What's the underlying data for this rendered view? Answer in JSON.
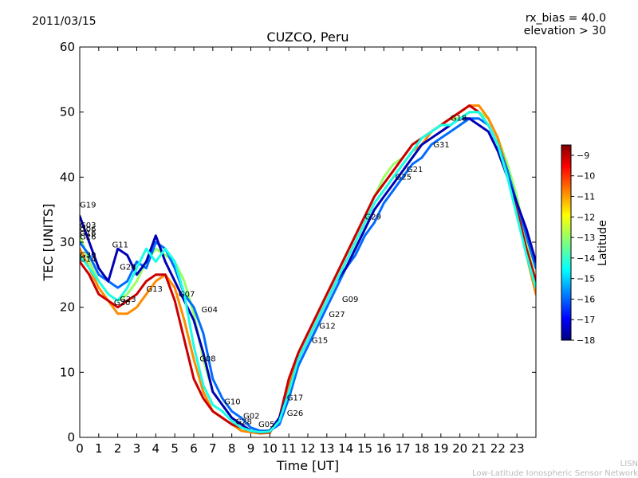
{
  "header": {
    "date": "2011/03/15",
    "rx_bias": "rx_bias = 40.0",
    "elevation": "elevation > 30"
  },
  "footer": {
    "line1": "LISN",
    "line2": "Low-Latitude Ionospheric Sensor Network"
  },
  "colorbar": {
    "label": "Latitude",
    "ticks": [
      "−9",
      "−10",
      "−11",
      "−12",
      "−13",
      "−14",
      "−15",
      "−16",
      "−17",
      "−18"
    ],
    "range": [
      -18,
      -8.5
    ],
    "colormap": [
      "#00007f",
      "#0000ff",
      "#007fff",
      "#00ffff",
      "#7fff7f",
      "#ffff00",
      "#ff7f00",
      "#ff0000",
      "#7f0000"
    ]
  },
  "chart_data": {
    "type": "line",
    "title": "CUZCO, Peru",
    "xlabel": "Time [UT]",
    "ylabel": "TEC [UNITS]",
    "xlim": [
      0,
      24
    ],
    "ylim": [
      0,
      60
    ],
    "xticks": [
      "0",
      "1",
      "2",
      "3",
      "4",
      "5",
      "6",
      "7",
      "8",
      "9",
      "10",
      "11",
      "12",
      "13",
      "14",
      "15",
      "16",
      "17",
      "18",
      "19",
      "20",
      "21",
      "22",
      "23"
    ],
    "yticks": [
      "0",
      "10",
      "20",
      "30",
      "40",
      "50",
      "60"
    ],
    "series": [
      {
        "name": "main-green",
        "lat": -13.0,
        "x": [
          0,
          0.5,
          1,
          1.5,
          2,
          2.5,
          3,
          3.5,
          4,
          4.5,
          5,
          5.5,
          6,
          6.5,
          7,
          7.5,
          8,
          8.5,
          9,
          9.5,
          10,
          10.5,
          11,
          11.5,
          12,
          12.5,
          13,
          13.5,
          14,
          14.5,
          15,
          15.5,
          16,
          16.5,
          17,
          17.5,
          18,
          18.5,
          19,
          19.5,
          20,
          20.5,
          21,
          21.5,
          22,
          22.5,
          23,
          23.5,
          24
        ],
        "y": [
          31,
          27,
          24,
          22,
          21,
          22,
          24,
          27,
          29,
          28,
          27,
          24,
          19,
          12,
          7,
          5,
          3,
          2,
          1,
          0.8,
          0.8,
          3,
          8,
          13,
          16,
          19,
          22,
          25,
          28,
          31,
          34,
          37,
          40,
          42,
          43,
          45,
          46,
          47,
          48,
          49,
          49,
          50,
          50,
          49,
          46,
          42,
          37,
          30,
          24
        ]
      },
      {
        "name": "yellow-orange",
        "lat": -11.0,
        "x": [
          0,
          0.5,
          1,
          1.5,
          2,
          2.5,
          3,
          3.5,
          4,
          4.5,
          5,
          5.5,
          6,
          6.5,
          7,
          7.5,
          8,
          8.5,
          9,
          9.5,
          10,
          10.5,
          11,
          11.5,
          12,
          12.5,
          13,
          13.5,
          14,
          14.5,
          15,
          15.5,
          16,
          16.5,
          17,
          17.5,
          18,
          18.5,
          19,
          19.5,
          20,
          20.5,
          21,
          21.5,
          22,
          22.5,
          23,
          23.5,
          24
        ],
        "y": [
          29,
          26,
          23,
          21,
          19,
          19,
          20,
          22,
          24,
          25,
          23,
          18,
          12,
          7,
          4,
          3,
          2,
          1,
          0.8,
          0.6,
          0.7,
          3,
          8,
          12,
          15,
          18,
          21,
          24,
          27,
          30,
          33,
          36,
          38,
          40,
          42,
          44,
          45,
          47,
          48,
          49,
          50,
          51,
          51,
          49,
          46,
          41,
          35,
          28,
          22
        ]
      },
      {
        "name": "red-dark",
        "lat": -9.2,
        "x": [
          0,
          0.5,
          1,
          1.5,
          2,
          2.5,
          3,
          3.5,
          4,
          4.5,
          5,
          5.5,
          6,
          6.5,
          7,
          7.5,
          8,
          8.5,
          9,
          9.5,
          10,
          10.5,
          11,
          11.5,
          12,
          12.5,
          13,
          13.5,
          14,
          14.5,
          15,
          15.5,
          16,
          16.5,
          17,
          17.5,
          18,
          18.5,
          19,
          19.5,
          20,
          20.5,
          21,
          21.5,
          22,
          22.5,
          23,
          23.5,
          24
        ],
        "y": [
          27,
          25,
          22,
          21,
          20,
          21,
          22,
          24,
          25,
          25,
          21,
          15,
          9,
          6,
          4,
          3,
          2,
          1.5,
          1,
          0.7,
          0.8,
          3,
          9,
          13,
          16,
          19,
          22,
          25,
          28,
          31,
          34,
          37,
          39,
          41,
          43,
          45,
          46,
          47,
          48,
          49,
          50,
          51,
          50,
          48,
          45,
          40,
          35,
          29,
          24
        ]
      },
      {
        "name": "cyan",
        "lat": -15.8,
        "x": [
          0,
          0.5,
          1,
          1.5,
          2,
          2.5,
          3,
          3.5,
          4,
          4.5,
          5,
          5.5,
          6,
          6.5,
          7,
          7.5,
          8,
          8.5,
          9,
          9.5,
          10,
          10.5,
          11,
          11.5,
          12,
          12.5,
          13,
          13.5,
          14,
          14.5,
          15,
          15.5,
          16,
          16.5,
          17,
          17.5,
          18,
          18.5,
          19,
          19.5,
          20,
          20.5,
          21,
          21.5,
          22,
          22.5,
          23,
          23.5,
          24
        ],
        "y": [
          30,
          28,
          25,
          24,
          23,
          24,
          27,
          26,
          30,
          29,
          26,
          22,
          20,
          16,
          9,
          6,
          4,
          3,
          1.5,
          1,
          1,
          2,
          6,
          11,
          14,
          17,
          20,
          23,
          26,
          28,
          31,
          33,
          36,
          38,
          40,
          42,
          43,
          45,
          46,
          47,
          48,
          49,
          49,
          48,
          45,
          41,
          36,
          31,
          26
        ]
      },
      {
        "name": "blue",
        "lat": -17.5,
        "x": [
          0,
          0.5,
          1,
          1.5,
          2,
          2.5,
          3,
          3.5,
          4,
          4.5,
          5,
          5.5,
          6,
          6.5,
          7,
          7.5,
          8,
          8.5,
          9,
          9.5,
          10,
          10.5,
          11,
          11.5,
          12,
          12.5,
          13,
          13.5,
          14,
          14.5,
          15,
          15.5,
          16,
          16.5,
          17,
          17.5,
          18,
          18.5,
          19,
          19.5,
          20,
          20.5,
          21,
          21.5,
          22,
          22.5,
          23,
          23.5,
          24
        ],
        "y": [
          34,
          30,
          26,
          24,
          29,
          28,
          25,
          27,
          31,
          27,
          24,
          21,
          18,
          13,
          7,
          5,
          3,
          2,
          1,
          0.8,
          1,
          3,
          7,
          12,
          15,
          18,
          21,
          24,
          26,
          29,
          32,
          35,
          37,
          39,
          41,
          43,
          45,
          46,
          47,
          48,
          49,
          49,
          48,
          47,
          44,
          40,
          36,
          32,
          27
        ]
      },
      {
        "name": "green-dark",
        "lat": -14.2,
        "x": [
          0,
          0.5,
          1,
          1.5,
          2,
          2.5,
          3,
          3.5,
          4,
          4.5,
          5,
          5.5,
          6,
          6.5,
          7,
          7.5,
          8,
          8.5,
          9,
          9.5,
          10,
          10.5,
          11,
          11.5,
          12,
          12.5,
          13,
          13.5,
          14,
          14.5,
          15,
          15.5,
          16,
          16.5,
          17,
          17.5,
          18,
          18.5,
          19,
          19.5,
          20,
          20.5,
          21,
          21.5,
          22,
          22.5,
          23,
          23.5,
          24
        ],
        "y": [
          28,
          26,
          24,
          22,
          21,
          23,
          26,
          29,
          27,
          29,
          27,
          22,
          14,
          8,
          5,
          4,
          2.5,
          1.5,
          1,
          0.8,
          0.9,
          2.5,
          7,
          12,
          15,
          18,
          21,
          24,
          27,
          30,
          33,
          36,
          38,
          40,
          42,
          44,
          46,
          47,
          48,
          48,
          49,
          50,
          50,
          48,
          45,
          40,
          34,
          28,
          23
        ]
      }
    ],
    "labels": [
      {
        "text": "G19",
        "x": 0.0,
        "y": 35.3
      },
      {
        "text": "G03",
        "x": 0.0,
        "y": 32.2
      },
      {
        "text": "G06",
        "x": 0.0,
        "y": 31.6
      },
      {
        "text": "G16",
        "x": 0.0,
        "y": 31.0
      },
      {
        "text": "G26",
        "x": 0.0,
        "y": 30.4
      },
      {
        "text": "G30",
        "x": 0.0,
        "y": 27.6
      },
      {
        "text": "G14",
        "x": 0.0,
        "y": 27.0
      },
      {
        "text": "G11",
        "x": 1.7,
        "y": 29.2
      },
      {
        "text": "G24",
        "x": 2.1,
        "y": 25.8
      },
      {
        "text": "G13",
        "x": 3.5,
        "y": 22.4
      },
      {
        "text": "G23",
        "x": 2.1,
        "y": 20.8
      },
      {
        "text": "G20",
        "x": 1.8,
        "y": 20.3
      },
      {
        "text": "G07",
        "x": 5.2,
        "y": 21.6
      },
      {
        "text": "G04",
        "x": 6.4,
        "y": 19.2
      },
      {
        "text": "G08",
        "x": 6.3,
        "y": 11.7
      },
      {
        "text": "G10",
        "x": 7.6,
        "y": 5.1
      },
      {
        "text": "G02",
        "x": 8.6,
        "y": 2.9
      },
      {
        "text": "G28",
        "x": 8.2,
        "y": 2.0
      },
      {
        "text": "G05",
        "x": 9.4,
        "y": 1.6
      },
      {
        "text": "G17",
        "x": 10.9,
        "y": 5.7
      },
      {
        "text": "G26",
        "x": 10.9,
        "y": 3.3
      },
      {
        "text": "G15",
        "x": 12.2,
        "y": 14.5
      },
      {
        "text": "G12",
        "x": 12.6,
        "y": 16.7
      },
      {
        "text": "G27",
        "x": 13.1,
        "y": 18.5
      },
      {
        "text": "G09",
        "x": 13.8,
        "y": 20.8
      },
      {
        "text": "G29",
        "x": 15.0,
        "y": 33.5
      },
      {
        "text": "G25",
        "x": 16.6,
        "y": 39.6
      },
      {
        "text": "G21",
        "x": 17.2,
        "y": 40.8
      },
      {
        "text": "G31",
        "x": 18.6,
        "y": 44.6
      },
      {
        "text": "G18",
        "x": 19.5,
        "y": 48.7
      }
    ]
  }
}
